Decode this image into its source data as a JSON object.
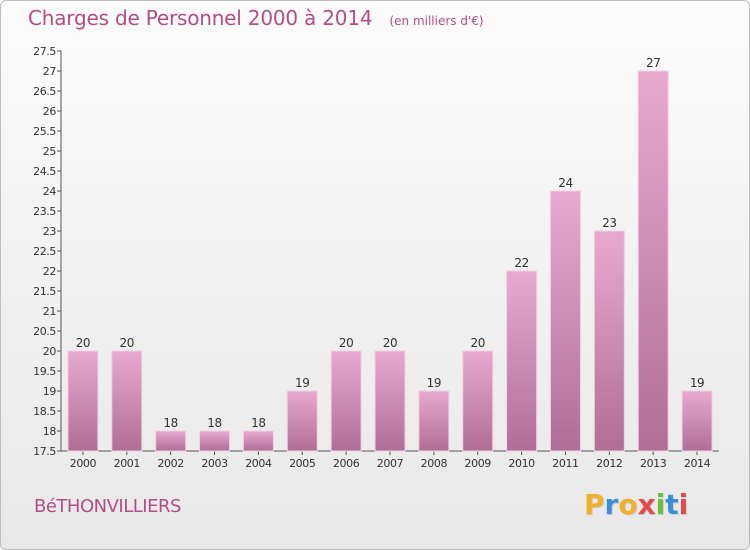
{
  "header": {
    "title": "Charges de Personnel 2000 à 2014",
    "subtitle": "(en milliers d'€)"
  },
  "footer": {
    "commune": "BéTHONVILLIERS",
    "brand_letters": [
      "P",
      "r",
      "o",
      "x",
      "i",
      "t",
      "i"
    ],
    "brand_colors": [
      "#f2b02a",
      "#3a8fd6",
      "#f2b02a",
      "#e34a4a",
      "#6cbf3a",
      "#3a8fd6",
      "#e34a4a"
    ]
  },
  "chart_data": {
    "type": "bar",
    "categories": [
      "2000",
      "2001",
      "2002",
      "2003",
      "2004",
      "2005",
      "2006",
      "2007",
      "2008",
      "2009",
      "2010",
      "2011",
      "2012",
      "2013",
      "2014"
    ],
    "values": [
      20,
      20,
      18,
      18,
      18,
      19,
      20,
      20,
      19,
      20,
      22,
      24,
      23,
      27,
      19
    ],
    "value_labels": [
      "20",
      "20",
      "18",
      "18",
      "18",
      "19",
      "20",
      "20",
      "19",
      "20",
      "22",
      "24",
      "23",
      "27",
      "19"
    ],
    "ylim": [
      17.5,
      27.5
    ],
    "y_ticks": [
      "17.5",
      "18",
      "18.5",
      "19",
      "19.5",
      "20",
      "20.5",
      "21",
      "21.5",
      "22",
      "22.5",
      "23",
      "23.5",
      "24",
      "24.5",
      "25",
      "25.5",
      "26",
      "26.5",
      "27",
      "27.5"
    ],
    "grid": false,
    "bar_color": "#d992bb"
  }
}
